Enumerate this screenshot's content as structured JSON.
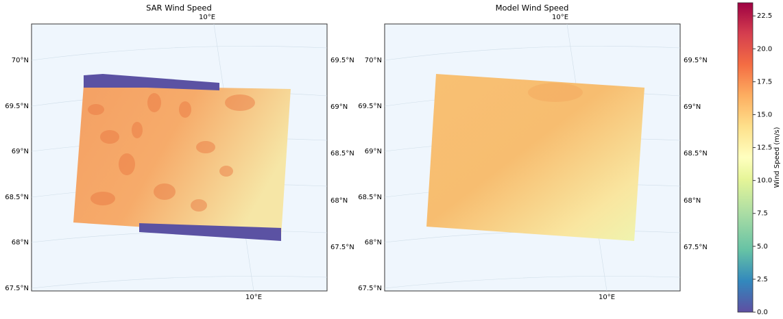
{
  "panels": [
    {
      "title": "SAR Wind Speed",
      "top_label": "10°E",
      "bottom_label": "10°E",
      "left_labels": [
        "70°N",
        "69.5°N",
        "69°N",
        "68.5°N",
        "68°N",
        "67.5°N"
      ],
      "right_labels": [
        "69.5°N",
        "69°N",
        "68.5°N",
        "68°N",
        "67.5°N"
      ]
    },
    {
      "title": "Model Wind Speed",
      "top_label": "10°E",
      "bottom_label": "10°E",
      "left_labels": [
        "70°N",
        "69.5°N",
        "69°N",
        "68.5°N",
        "68°N",
        "67.5°N"
      ],
      "right_labels": [
        "69.5°N",
        "69°N",
        "68.5°N",
        "68°N",
        "67.5°N"
      ]
    }
  ],
  "colorbar": {
    "label": "Wind Speed (m/s)",
    "lim": [
      0,
      23.5
    ],
    "ticks": [
      {
        "value": 0,
        "label": "0.0"
      },
      2.5,
      {
        "value": 5,
        "label": "5.0"
      },
      7.5,
      {
        "value": 10,
        "label": "10.0"
      },
      12.5,
      {
        "value": 15,
        "label": "15.0"
      },
      17.5,
      {
        "value": 20,
        "label": "20.0"
      },
      22.5
    ]
  }
}
